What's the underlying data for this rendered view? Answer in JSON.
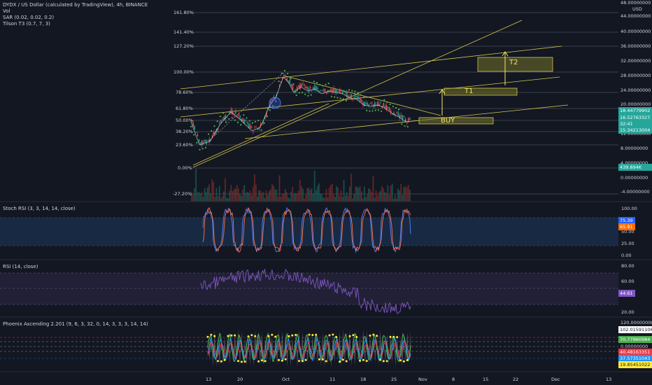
{
  "header": {
    "title": "DYDX / US Dollar (calculated by TradingView), 4h, BINANCE",
    "indicators": [
      "Vol",
      "SAR (0.02, 0.02, 0.2)",
      "Tilson T3 (0.7, 7, 3)"
    ]
  },
  "price_axis": {
    "unit": "USD",
    "ticks": [
      "48.00000000",
      "44.00000000",
      "40.00000000",
      "36.00000000",
      "32.00000000",
      "28.00000000",
      "24.00000000",
      "20.00000000",
      "12.00000000",
      "8.00000000",
      "4.00000000",
      "0.00000000",
      "-4.00000000"
    ],
    "badges": [
      {
        "value": "18.44779902",
        "color": "#26a69a"
      },
      {
        "value": "16.52763327",
        "color": "#26a69a"
      },
      {
        "value": "32:41",
        "color": "#26a69a"
      },
      {
        "value": "15.34213004",
        "color": "#26a69a"
      },
      {
        "value": "439.894K",
        "color": "#26a69a"
      }
    ]
  },
  "fib_levels": [
    "161.80%",
    "141.40%",
    "127.20%",
    "100.00%",
    "78.60%",
    "61.80%",
    "50.00%",
    "38.20%",
    "23.60%",
    "0.00%",
    "-27.20%"
  ],
  "annotations": {
    "buy": "BUY",
    "t1": "T1",
    "t2": "T2"
  },
  "stoch": {
    "title": "Stoch RSI (3, 3, 14, 14, close)",
    "ticks": [
      "100.00",
      "50.00",
      "25.00",
      "0.00"
    ],
    "badges": [
      {
        "value": "75.39",
        "color": "#2962ff"
      },
      {
        "value": "65.81",
        "color": "#ff6d00"
      }
    ]
  },
  "rsi": {
    "title": "RSI (14, close)",
    "ticks": [
      "80.00",
      "60.00",
      "20.00"
    ],
    "badges": [
      {
        "value": "44.61",
        "color": "#7e57c2"
      }
    ]
  },
  "phoenix": {
    "title": "Phoenix Ascending 2.201 (9, 6, 3, 32, 0, 14, 3, 3, 3, 14, 14)",
    "ticks": [
      "120.00000000",
      "0.00000000"
    ],
    "badges": [
      {
        "value": "102.01591106",
        "color": "#ffffff"
      },
      {
        "value": "70.77960984",
        "color": "#4caf50"
      },
      {
        "value": "40.48163351",
        "color": "#f23645"
      },
      {
        "value": "37.57351043",
        "color": "#2196f3"
      },
      {
        "value": "19.85451022",
        "color": "#ffeb3b"
      }
    ]
  },
  "time_axis": [
    "13",
    "20",
    "Oct",
    "11",
    "18",
    "25",
    "Nov",
    "8",
    "15",
    "22",
    "Dec",
    "13"
  ],
  "colors": {
    "bg": "#131722",
    "grid": "#2a2e39",
    "up": "#26a69a",
    "down": "#ef5350",
    "fib": "#787b86",
    "trend": "#d4c64b",
    "sar": "#4caf50"
  }
}
